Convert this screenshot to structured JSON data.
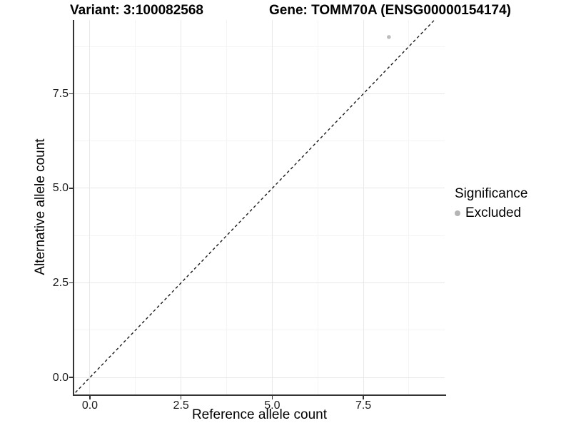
{
  "chart_data": {
    "type": "scatter",
    "titles": {
      "left": "Variant: 3:100082568",
      "right": "Gene: TOMM70A (ENSG00000154174)"
    },
    "xlabel": "Reference allele count",
    "ylabel": "Alternative allele count",
    "xlim": [
      -0.43,
      9.73
    ],
    "ylim": [
      -0.45,
      9.45
    ],
    "x_major_ticks": [
      0.0,
      2.5,
      5.0,
      7.5
    ],
    "y_major_ticks": [
      0.0,
      2.5,
      5.0,
      7.5
    ],
    "x_minor_gridlines": [
      1.25,
      3.75,
      6.25,
      8.75
    ],
    "y_minor_gridlines": [
      1.25,
      3.75,
      6.25,
      8.75
    ],
    "tick_decimals": 1,
    "grid": true,
    "series": [
      {
        "name": "Excluded",
        "color": "#bcbcbc",
        "point_radius": 2.8,
        "points": [
          {
            "x": 8.2,
            "y": 9.0
          }
        ]
      }
    ],
    "reference_line": {
      "kind": "identity",
      "from": -0.5,
      "to": 9.5,
      "style": "dashed",
      "dash": "4,3.5",
      "width": 1.4,
      "color": "#1a1a1a"
    },
    "legend": {
      "title": "Significance",
      "position": "right-center",
      "entries": [
        {
          "label": "Excluded",
          "color": "#b5b5b5"
        }
      ]
    },
    "colors": {
      "background": "#ffffff",
      "grid_major": "#e8e8e8",
      "grid_minor": "#f4f4f4",
      "axis_line": "#333333",
      "text": "#000000"
    }
  }
}
